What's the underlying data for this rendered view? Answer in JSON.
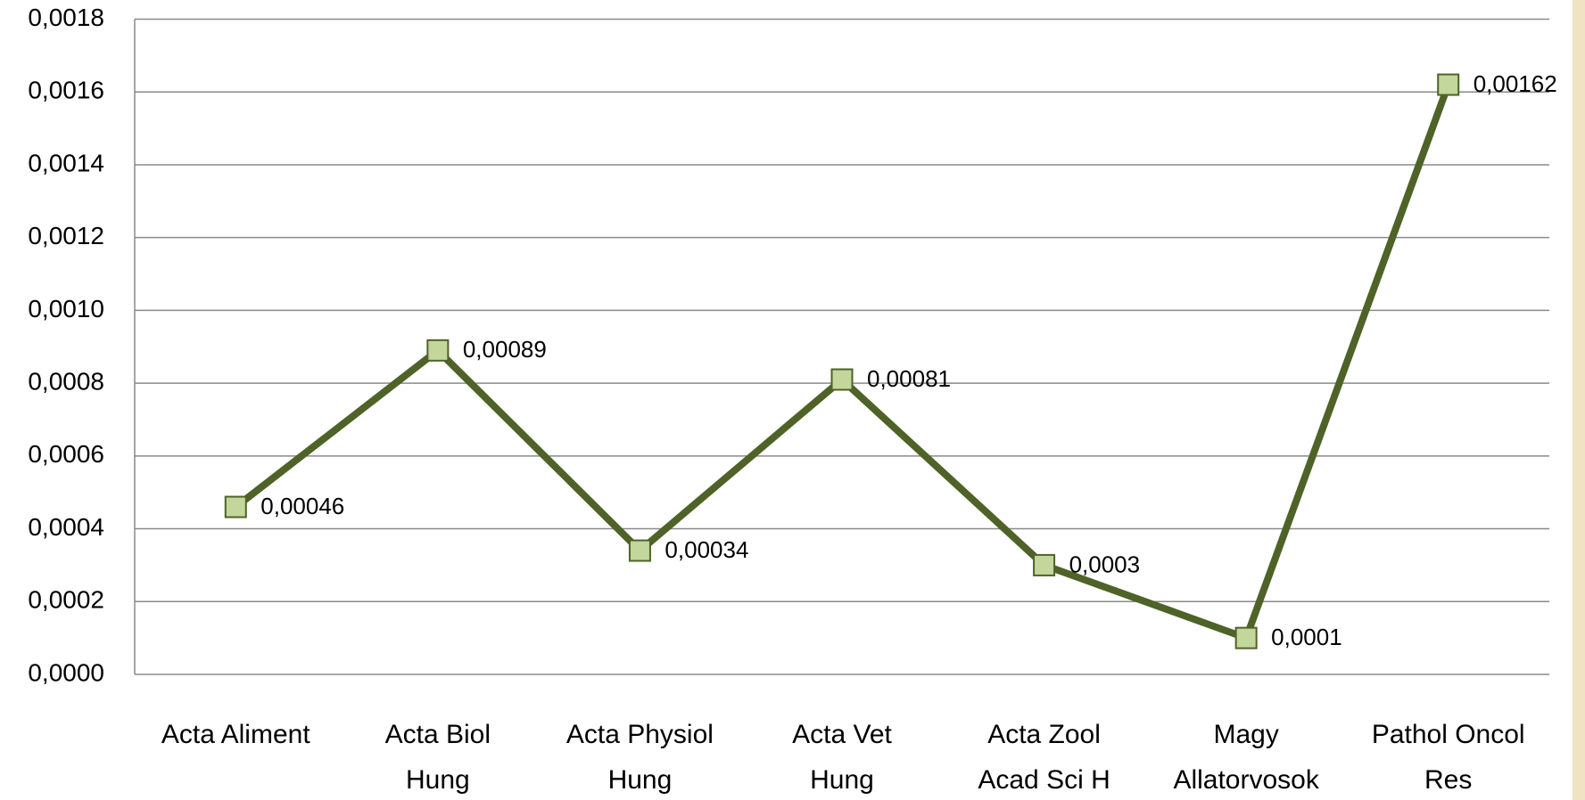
{
  "chart_data": {
    "type": "line",
    "categories": [
      "Acta Aliment",
      "Acta Biol Hung",
      "Acta Physiol Hung",
      "Acta Vet Hung",
      "Acta Zool Acad Sci H",
      "Magy Allatorvosok",
      "Pathol Oncol Res"
    ],
    "series": [
      {
        "color": "#4f6228",
        "marker_color": "#c3d69b",
        "values": [
          0.00046,
          0.00089,
          0.00034,
          0.00081,
          0.0003,
          0.0001,
          0.00162
        ],
        "value_labels": [
          "0,00046",
          "0,00089",
          "0,00034",
          "0,00081",
          "0,0003",
          "0,0001",
          "0,00162"
        ]
      }
    ],
    "ylim": [
      0,
      0.0018
    ],
    "yticks": [
      {
        "value": 0,
        "label": "0,0000"
      },
      {
        "value": 0.0002,
        "label": "0,0002"
      },
      {
        "value": 0.0004,
        "label": "0,0004"
      },
      {
        "value": 0.0006,
        "label": "0,0006"
      },
      {
        "value": 0.0008,
        "label": "0,0008"
      },
      {
        "value": 0.001,
        "label": "0,0010"
      },
      {
        "value": 0.0012,
        "label": "0,0012"
      },
      {
        "value": 0.0014,
        "label": "0,0014"
      },
      {
        "value": 0.0016,
        "label": "0,0016"
      },
      {
        "value": 0.0018,
        "label": "0,0018"
      }
    ],
    "grid": true
  }
}
